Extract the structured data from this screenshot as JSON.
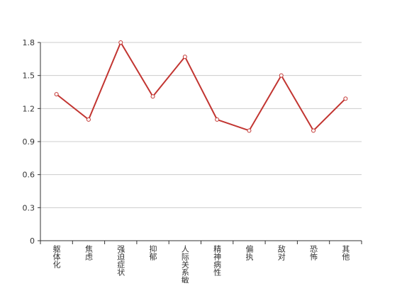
{
  "chart_data": {
    "type": "line",
    "categories": [
      "躯体化",
      "焦虑",
      "强迫症状",
      "抑郁",
      "人际关系敏感",
      "精神病性",
      "偏执",
      "敌对",
      "恐怖",
      "其他"
    ],
    "series": [
      {
        "name": "",
        "color": "#c23531",
        "values": [
          1.33,
          1.1,
          1.8,
          1.31,
          1.67,
          1.1,
          1.0,
          1.5,
          1.0,
          1.29
        ]
      }
    ],
    "ylim": [
      0,
      1.8
    ],
    "yticks": [
      0,
      0.3,
      0.6,
      0.9,
      1.2,
      1.5,
      1.8
    ],
    "grid": true
  }
}
